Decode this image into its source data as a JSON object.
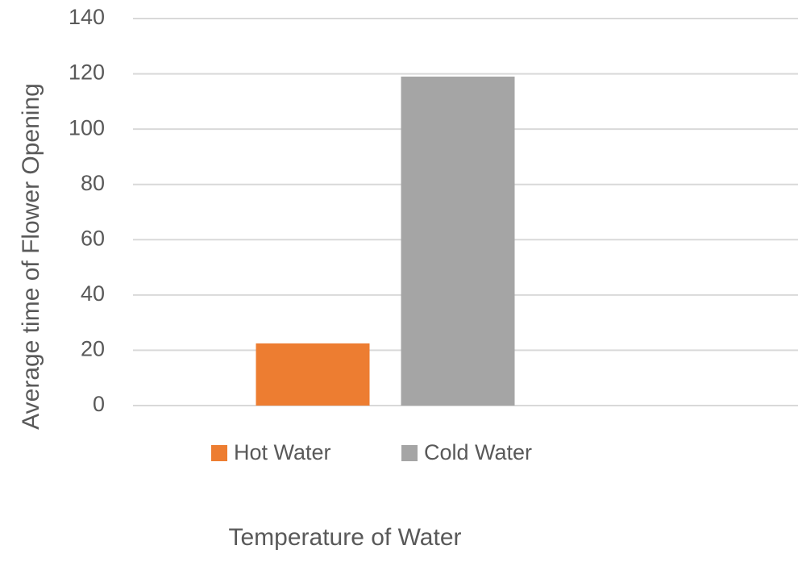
{
  "chart_data": {
    "type": "bar",
    "x_label": "Temperature of Water",
    "y_label": "Average time of Flower Opening",
    "categories": [
      null
    ],
    "series": [
      {
        "name": "Hot Water",
        "color": "#ed7d31",
        "values": [
          22.5
        ]
      },
      {
        "name": "Cold Water",
        "color": "#a5a5a5",
        "values": [
          119
        ]
      }
    ],
    "ylim": [
      0,
      140
    ],
    "yticks": [
      0,
      20,
      40,
      60,
      80,
      100,
      120,
      140
    ],
    "grid": true,
    "legend": "bottom"
  }
}
